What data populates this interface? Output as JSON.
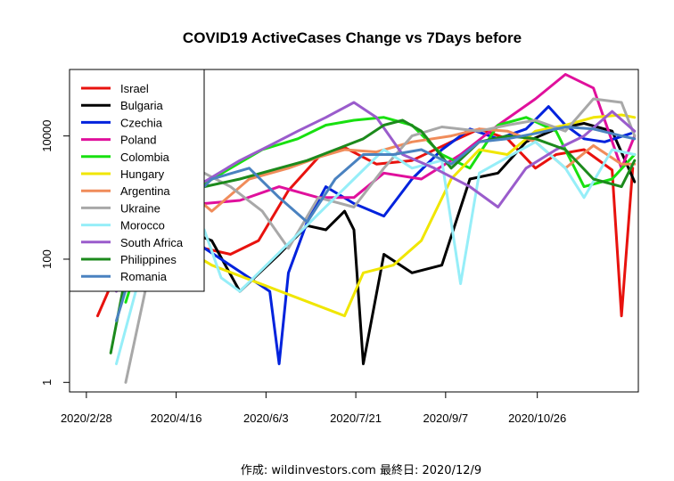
{
  "chart_data": {
    "type": "line",
    "title": "COVID19 ActiveCases Change vs 7Days before",
    "xlabel": "",
    "ylabel": "",
    "y_scale": "log",
    "ylim": [
      0.7,
      120000
    ],
    "xlim": [
      "2020-02-19",
      "2020-12-19"
    ],
    "x_ticks": [
      {
        "date": "2020-02-28",
        "label": "2020/2/28"
      },
      {
        "date": "2020-04-16",
        "label": "2020/4/16"
      },
      {
        "date": "2020-06-03",
        "label": "2020/6/3"
      },
      {
        "date": "2020-07-21",
        "label": "2020/7/21"
      },
      {
        "date": "2020-09-07",
        "label": "2020/9/7"
      },
      {
        "date": "2020-10-26",
        "label": "2020/10/26"
      }
    ],
    "y_ticks": [
      {
        "value": 1,
        "label": "1"
      },
      {
        "value": 100,
        "label": "100"
      },
      {
        "value": 10000,
        "label": "10000"
      }
    ],
    "legend_position": "top-left",
    "series": [
      {
        "name": "Israel",
        "color": "#e8120e",
        "points": [
          [
            "2020-03-05",
            12
          ],
          [
            "2020-03-15",
            60
          ],
          [
            "2020-03-25",
            1500
          ],
          [
            "2020-04-05",
            3500
          ],
          [
            "2020-04-18",
            900
          ],
          [
            "2020-05-01",
            150
          ],
          [
            "2020-05-15",
            120
          ],
          [
            "2020-05-30",
            200
          ],
          [
            "2020-06-15",
            1300
          ],
          [
            "2020-07-01",
            4500
          ],
          [
            "2020-07-15",
            6500
          ],
          [
            "2020-08-01",
            3500
          ],
          [
            "2020-08-20",
            4000
          ],
          [
            "2020-09-10",
            8000
          ],
          [
            "2020-09-25",
            13000
          ],
          [
            "2020-10-10",
            9000
          ],
          [
            "2020-10-25",
            3000
          ],
          [
            "2020-11-05",
            5000
          ],
          [
            "2020-11-20",
            6000
          ],
          [
            "2020-12-05",
            2800
          ],
          [
            "2020-12-10",
            12
          ],
          [
            "2020-12-16",
            3000
          ]
        ]
      },
      {
        "name": "Bulgaria",
        "color": "#000000",
        "points": [
          [
            "2020-04-20",
            300
          ],
          [
            "2020-05-05",
            200
          ],
          [
            "2020-05-20",
            30
          ],
          [
            "2020-06-10",
            120
          ],
          [
            "2020-06-25",
            350
          ],
          [
            "2020-07-05",
            300
          ],
          [
            "2020-07-15",
            600
          ],
          [
            "2020-07-20",
            300
          ],
          [
            "2020-07-25",
            2
          ],
          [
            "2020-08-05",
            120
          ],
          [
            "2020-08-20",
            60
          ],
          [
            "2020-09-05",
            80
          ],
          [
            "2020-09-20",
            2000
          ],
          [
            "2020-10-05",
            2500
          ],
          [
            "2020-10-20",
            8000
          ],
          [
            "2020-11-05",
            13000
          ],
          [
            "2020-11-20",
            16000
          ],
          [
            "2020-12-05",
            12000
          ],
          [
            "2020-12-17",
            1800
          ]
        ]
      },
      {
        "name": "Czechia",
        "color": "#0022dd",
        "points": [
          [
            "2020-03-12",
            50
          ],
          [
            "2020-03-25",
            600
          ],
          [
            "2020-04-10",
            400
          ],
          [
            "2020-04-25",
            200
          ],
          [
            "2020-06-05",
            30
          ],
          [
            "2020-06-10",
            2
          ],
          [
            "2020-06-15",
            60
          ],
          [
            "2020-06-25",
            400
          ],
          [
            "2020-07-05",
            1500
          ],
          [
            "2020-07-20",
            800
          ],
          [
            "2020-08-05",
            500
          ],
          [
            "2020-08-20",
            2000
          ],
          [
            "2020-09-05",
            6000
          ],
          [
            "2020-09-20",
            13000
          ],
          [
            "2020-10-05",
            9000
          ],
          [
            "2020-10-20",
            13000
          ],
          [
            "2020-11-01",
            30000
          ],
          [
            "2020-11-10",
            15000
          ],
          [
            "2020-11-20",
            9000
          ],
          [
            "2020-12-01",
            8000
          ],
          [
            "2020-12-15",
            11000
          ]
        ]
      },
      {
        "name": "Poland",
        "color": "#e0109c",
        "points": [
          [
            "2020-03-12",
            100
          ],
          [
            "2020-03-30",
            2000
          ],
          [
            "2020-04-15",
            1500
          ],
          [
            "2020-05-01",
            800
          ],
          [
            "2020-05-20",
            900
          ],
          [
            "2020-06-10",
            1500
          ],
          [
            "2020-07-01",
            1000
          ],
          [
            "2020-07-20",
            1000
          ],
          [
            "2020-08-05",
            2500
          ],
          [
            "2020-08-25",
            2000
          ],
          [
            "2020-09-15",
            5000
          ],
          [
            "2020-10-05",
            15000
          ],
          [
            "2020-10-25",
            40000
          ],
          [
            "2020-11-10",
            100000
          ],
          [
            "2020-11-25",
            60000
          ],
          [
            "2020-12-10",
            3000
          ],
          [
            "2020-12-17",
            10000
          ]
        ]
      },
      {
        "name": "Colombia",
        "color": "#18e010",
        "points": [
          [
            "2020-03-20",
            20
          ],
          [
            "2020-04-05",
            700
          ],
          [
            "2020-04-25",
            1300
          ],
          [
            "2020-05-15",
            3000
          ],
          [
            "2020-06-01",
            6000
          ],
          [
            "2020-06-20",
            9000
          ],
          [
            "2020-07-05",
            15000
          ],
          [
            "2020-07-20",
            18000
          ],
          [
            "2020-08-05",
            20000
          ],
          [
            "2020-08-20",
            15000
          ],
          [
            "2020-09-05",
            5000
          ],
          [
            "2020-09-20",
            3000
          ],
          [
            "2020-10-05",
            15000
          ],
          [
            "2020-10-20",
            20000
          ],
          [
            "2020-11-05",
            12000
          ],
          [
            "2020-11-20",
            1500
          ],
          [
            "2020-12-05",
            2000
          ],
          [
            "2020-12-17",
            5000
          ]
        ]
      },
      {
        "name": "Hungary",
        "color": "#f0e600",
        "points": [
          [
            "2020-03-20",
            50
          ],
          [
            "2020-04-01",
            400
          ],
          [
            "2020-04-20",
            150
          ],
          [
            "2020-05-05",
            80
          ],
          [
            "2020-07-15",
            12
          ],
          [
            "2020-07-25",
            60
          ],
          [
            "2020-08-10",
            80
          ],
          [
            "2020-08-25",
            200
          ],
          [
            "2020-09-10",
            2000
          ],
          [
            "2020-09-25",
            6000
          ],
          [
            "2020-10-10",
            5000
          ],
          [
            "2020-10-25",
            12000
          ],
          [
            "2020-11-10",
            15000
          ],
          [
            "2020-11-25",
            20000
          ],
          [
            "2020-12-10",
            22000
          ],
          [
            "2020-12-17",
            20000
          ]
        ]
      },
      {
        "name": "Argentina",
        "color": "#f08c5a",
        "points": [
          [
            "2020-03-15",
            60
          ],
          [
            "2020-04-01",
            700
          ],
          [
            "2020-04-20",
            1500
          ],
          [
            "2020-05-05",
            600
          ],
          [
            "2020-05-25",
            2000
          ],
          [
            "2020-06-15",
            3000
          ],
          [
            "2020-07-01",
            4500
          ],
          [
            "2020-07-15",
            6000
          ],
          [
            "2020-08-01",
            5500
          ],
          [
            "2020-08-20",
            8000
          ],
          [
            "2020-09-10",
            10000
          ],
          [
            "2020-09-25",
            13000
          ],
          [
            "2020-10-10",
            12000
          ],
          [
            "2020-10-25",
            8000
          ],
          [
            "2020-11-10",
            3000
          ],
          [
            "2020-11-25",
            7000
          ],
          [
            "2020-12-10",
            3500
          ],
          [
            "2020-12-17",
            3500
          ]
        ]
      },
      {
        "name": "Ukraine",
        "color": "#a8a8a8",
        "points": [
          [
            "2020-03-20",
            1
          ],
          [
            "2020-04-01",
            50
          ],
          [
            "2020-04-15",
            700
          ],
          [
            "2020-05-01",
            2500
          ],
          [
            "2020-05-15",
            1500
          ],
          [
            "2020-06-01",
            600
          ],
          [
            "2020-06-15",
            150
          ],
          [
            "2020-07-01",
            1000
          ],
          [
            "2020-07-20",
            700
          ],
          [
            "2020-08-05",
            3000
          ],
          [
            "2020-08-20",
            10000
          ],
          [
            "2020-09-05",
            14000
          ],
          [
            "2020-09-25",
            12000
          ],
          [
            "2020-10-10",
            15000
          ],
          [
            "2020-10-25",
            18000
          ],
          [
            "2020-11-10",
            12000
          ],
          [
            "2020-11-25",
            40000
          ],
          [
            "2020-12-10",
            35000
          ],
          [
            "2020-12-17",
            10000
          ]
        ]
      },
      {
        "name": "Morocco",
        "color": "#96eef8",
        "points": [
          [
            "2020-03-15",
            2
          ],
          [
            "2020-03-30",
            100
          ],
          [
            "2020-04-15",
            700
          ],
          [
            "2020-05-01",
            300
          ],
          [
            "2020-05-10",
            50
          ],
          [
            "2020-05-20",
            30
          ],
          [
            "2020-07-20",
            2000
          ],
          [
            "2020-08-05",
            6000
          ],
          [
            "2020-08-20",
            3000
          ],
          [
            "2020-09-05",
            4000
          ],
          [
            "2020-09-15",
            40
          ],
          [
            "2020-09-25",
            2500
          ],
          [
            "2020-10-10",
            4500
          ],
          [
            "2020-10-25",
            8000
          ],
          [
            "2020-11-10",
            3000
          ],
          [
            "2020-11-20",
            1000
          ],
          [
            "2020-12-05",
            6000
          ],
          [
            "2020-12-17",
            5000
          ]
        ]
      },
      {
        "name": "South Africa",
        "color": "#9a5ccc",
        "points": [
          [
            "2020-03-15",
            30
          ],
          [
            "2020-04-01",
            900
          ],
          [
            "2020-04-15",
            1500
          ],
          [
            "2020-05-01",
            1800
          ],
          [
            "2020-05-20",
            4000
          ],
          [
            "2020-06-05",
            7000
          ],
          [
            "2020-06-20",
            12000
          ],
          [
            "2020-07-05",
            20000
          ],
          [
            "2020-07-20",
            35000
          ],
          [
            "2020-08-01",
            20000
          ],
          [
            "2020-08-15",
            5000
          ],
          [
            "2020-09-01",
            3000
          ],
          [
            "2020-09-20",
            1500
          ],
          [
            "2020-10-05",
            700
          ],
          [
            "2020-10-20",
            3000
          ],
          [
            "2020-11-05",
            6000
          ],
          [
            "2020-11-20",
            10000
          ],
          [
            "2020-12-05",
            25000
          ],
          [
            "2020-12-17",
            12000
          ]
        ]
      },
      {
        "name": "Philippines",
        "color": "#1c8a1c",
        "points": [
          [
            "2020-03-12",
            3
          ],
          [
            "2020-03-28",
            1000
          ],
          [
            "2020-04-15",
            1500
          ],
          [
            "2020-05-01",
            1500
          ],
          [
            "2020-05-20",
            2000
          ],
          [
            "2020-06-10",
            3000
          ],
          [
            "2020-06-25",
            4000
          ],
          [
            "2020-07-10",
            6000
          ],
          [
            "2020-07-25",
            9000
          ],
          [
            "2020-08-05",
            15000
          ],
          [
            "2020-08-15",
            18000
          ],
          [
            "2020-08-25",
            12000
          ],
          [
            "2020-09-10",
            3000
          ],
          [
            "2020-09-25",
            8000
          ],
          [
            "2020-10-10",
            10000
          ],
          [
            "2020-10-25",
            9000
          ],
          [
            "2020-11-10",
            6000
          ],
          [
            "2020-11-25",
            2000
          ],
          [
            "2020-12-10",
            1500
          ],
          [
            "2020-12-17",
            4000
          ]
        ]
      },
      {
        "name": "Romania",
        "color": "#4a82c0",
        "points": [
          [
            "2020-03-15",
            10
          ],
          [
            "2020-04-01",
            500
          ],
          [
            "2020-04-20",
            700
          ],
          [
            "2020-05-05",
            2000
          ],
          [
            "2020-05-25",
            3000
          ],
          [
            "2020-06-10",
            1000
          ],
          [
            "2020-06-25",
            400
          ],
          [
            "2020-07-10",
            2000
          ],
          [
            "2020-07-25",
            5000
          ],
          [
            "2020-08-10",
            5000
          ],
          [
            "2020-08-25",
            6000
          ],
          [
            "2020-09-10",
            3500
          ],
          [
            "2020-09-25",
            8000
          ],
          [
            "2020-10-10",
            9000
          ],
          [
            "2020-10-25",
            11000
          ],
          [
            "2020-11-10",
            14000
          ],
          [
            "2020-11-25",
            13000
          ],
          [
            "2020-12-10",
            10000
          ],
          [
            "2020-12-17",
            9000
          ]
        ]
      }
    ]
  },
  "footer": {
    "caption": "作成: wildinvestors.com 最終日: 2020/12/9"
  }
}
